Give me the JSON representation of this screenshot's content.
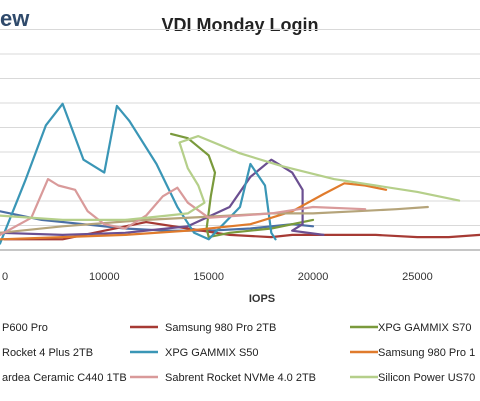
{
  "brand": "ew",
  "chart_data": {
    "type": "line",
    "title": "VDI Monday Login",
    "xlabel": "IOPS",
    "ylabel": "",
    "xlim": [
      5000,
      28000
    ],
    "ylim": [
      0,
      1.0
    ],
    "x_ticks": [
      10000,
      15000,
      20000,
      25000
    ],
    "x_tick_labels": [
      "10000",
      "15000",
      "20000",
      "25000"
    ],
    "left_tick_label": "0",
    "grid": true,
    "legend_position": "bottom",
    "series": [
      {
        "name": "P600 Pro",
        "color": "#4a6fa5",
        "points": [
          [
            5000,
            0.18
          ],
          [
            7000,
            0.14
          ],
          [
            9000,
            0.12
          ],
          [
            11000,
            0.1
          ],
          [
            13000,
            0.09
          ],
          [
            15000,
            0.09
          ],
          [
            17000,
            0.1
          ],
          [
            19000,
            0.12
          ],
          [
            20000,
            0.11
          ]
        ]
      },
      {
        "name": "Samsung 980 Pro 2TB",
        "color": "#a63a34",
        "points": [
          [
            5200,
            0.05
          ],
          [
            8000,
            0.05
          ],
          [
            10000,
            0.09
          ],
          [
            12000,
            0.13
          ],
          [
            14000,
            0.1
          ],
          [
            16000,
            0.07
          ],
          [
            18000,
            0.06
          ],
          [
            19000,
            0.07
          ],
          [
            21000,
            0.07
          ],
          [
            23000,
            0.07
          ],
          [
            25000,
            0.06
          ],
          [
            26500,
            0.06
          ],
          [
            28000,
            0.07
          ]
        ]
      },
      {
        "name": "XPG GAMMIX S70",
        "color": "#7a9a3c",
        "points": [
          [
            13200,
            0.54
          ],
          [
            14000,
            0.52
          ],
          [
            14500,
            0.48
          ],
          [
            15000,
            0.44
          ],
          [
            15300,
            0.36
          ],
          [
            15100,
            0.25
          ],
          [
            14900,
            0.1
          ],
          [
            15000,
            0.06
          ],
          [
            16000,
            0.08
          ],
          [
            18000,
            0.1
          ],
          [
            20000,
            0.14
          ]
        ]
      },
      {
        "name": "Rocket 4 Plus 2TB",
        "color": "#6b4f91",
        "points": [
          [
            5000,
            0.08
          ],
          [
            8000,
            0.07
          ],
          [
            11000,
            0.08
          ],
          [
            14000,
            0.11
          ],
          [
            16000,
            0.2
          ],
          [
            17000,
            0.34
          ],
          [
            18000,
            0.42
          ],
          [
            19000,
            0.36
          ],
          [
            19500,
            0.28
          ],
          [
            19500,
            0.2
          ],
          [
            19500,
            0.12
          ],
          [
            19000,
            0.09
          ],
          [
            20500,
            0.07
          ]
        ]
      },
      {
        "name": "XPG GAMMIX S50",
        "color": "#3a96b6",
        "points": [
          [
            5000,
            0.03
          ],
          [
            6200,
            0.32
          ],
          [
            7200,
            0.58
          ],
          [
            8000,
            0.68
          ],
          [
            9000,
            0.42
          ],
          [
            10000,
            0.36
          ],
          [
            10600,
            0.67
          ],
          [
            11200,
            0.6
          ],
          [
            12500,
            0.4
          ],
          [
            13500,
            0.2
          ],
          [
            14300,
            0.08
          ],
          [
            15000,
            0.05
          ],
          [
            16500,
            0.2
          ],
          [
            17000,
            0.4
          ],
          [
            17700,
            0.3
          ],
          [
            18000,
            0.08
          ],
          [
            18200,
            0.05
          ]
        ]
      },
      {
        "name": "Samsung 980 Pro 1",
        "color": "#e07b2c",
        "points": [
          [
            5000,
            0.05
          ],
          [
            8000,
            0.06
          ],
          [
            11000,
            0.07
          ],
          [
            14000,
            0.09
          ],
          [
            17000,
            0.12
          ],
          [
            19000,
            0.18
          ],
          [
            20500,
            0.26
          ],
          [
            21500,
            0.31
          ],
          [
            22500,
            0.3
          ],
          [
            23500,
            0.28
          ]
        ]
      },
      {
        "name": "ardea Ceramic C440 1TB",
        "color": "#b5a47a",
        "points": [
          [
            5000,
            0.08
          ],
          [
            8000,
            0.11
          ],
          [
            12000,
            0.14
          ],
          [
            16000,
            0.16
          ],
          [
            18000,
            0.17
          ],
          [
            20000,
            0.17
          ],
          [
            22000,
            0.18
          ],
          [
            24000,
            0.19
          ],
          [
            25500,
            0.2
          ]
        ]
      },
      {
        "name": "Sabrent Rocket NVMe 4.0 2TB",
        "color": "#d99a9a",
        "points": [
          [
            5000,
            0.07
          ],
          [
            6500,
            0.15
          ],
          [
            7300,
            0.33
          ],
          [
            7800,
            0.3
          ],
          [
            8600,
            0.28
          ],
          [
            9200,
            0.18
          ],
          [
            10000,
            0.12
          ],
          [
            11000,
            0.1
          ],
          [
            12000,
            0.16
          ],
          [
            12800,
            0.25
          ],
          [
            13500,
            0.29
          ],
          [
            14000,
            0.22
          ],
          [
            15000,
            0.15
          ],
          [
            18000,
            0.17
          ],
          [
            20000,
            0.2
          ],
          [
            22500,
            0.19
          ]
        ]
      },
      {
        "name": "Silicon Power US70",
        "color": "#b5cf8a",
        "points": [
          [
            5000,
            0.16
          ],
          [
            8000,
            0.14
          ],
          [
            11000,
            0.14
          ],
          [
            13000,
            0.16
          ],
          [
            14000,
            0.17
          ],
          [
            14800,
            0.22
          ],
          [
            14500,
            0.3
          ],
          [
            14000,
            0.38
          ],
          [
            13600,
            0.5
          ],
          [
            14500,
            0.53
          ],
          [
            16500,
            0.45
          ],
          [
            18500,
            0.39
          ],
          [
            21000,
            0.33
          ],
          [
            23000,
            0.3
          ],
          [
            25000,
            0.27
          ],
          [
            27000,
            0.23
          ]
        ]
      }
    ]
  }
}
